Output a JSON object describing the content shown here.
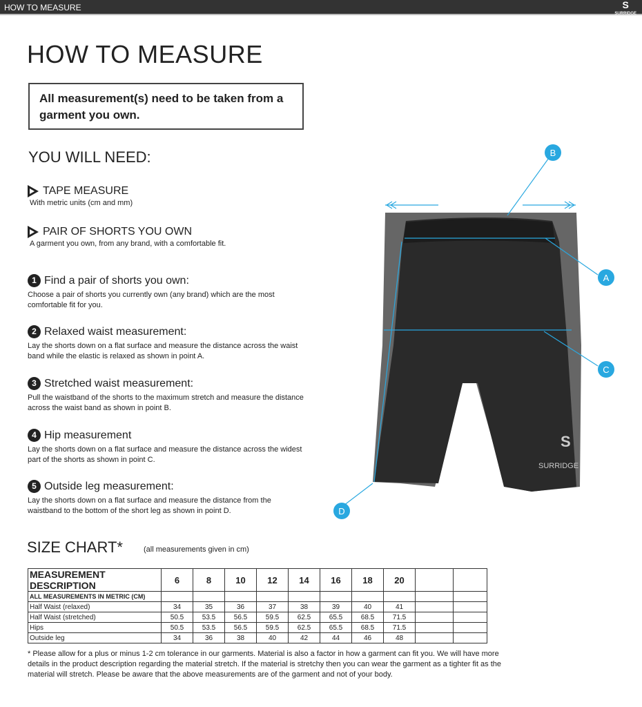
{
  "header": {
    "title": "HOW TO MEASURE",
    "logo_text": "SURRIDGE"
  },
  "page_title": "HOW TO MEASURE",
  "notice": "All measurement(s) need to be taken from a garment you own.",
  "you_will_need": {
    "heading": "YOU WILL NEED:",
    "items": [
      {
        "title": "TAPE MEASURE",
        "desc": "With metric units (cm and mm)"
      },
      {
        "title": "PAIR OF SHORTS YOU OWN",
        "desc": "A garment you own, from any brand, with a comfortable fit."
      }
    ]
  },
  "steps": [
    {
      "num": "1",
      "title": "Find a pair of shorts you own:",
      "desc": "Choose a pair of shorts you currently own (any brand) which are the most comfortable fit for you."
    },
    {
      "num": "2",
      "title": "Relaxed waist measurement:",
      "desc": "Lay the shorts down on a flat surface and measure the distance across the waist band while the elastic is relaxed as shown in point A."
    },
    {
      "num": "3",
      "title": "Stretched waist measurement:",
      "desc": "Pull the waistband of the shorts to the maximum stretch and measure the distance across the waist band as shown in point B."
    },
    {
      "num": "4",
      "title": "Hip measurement",
      "desc": "Lay the shorts down on a flat surface and measure the distance across the widest part of the shorts as shown in point C."
    },
    {
      "num": "5",
      "title": "Outside leg measurement:",
      "desc": "Lay the shorts down on a flat surface and measure the distance from the waistband to the bottom of the short leg as shown in point D."
    }
  ],
  "diagram": {
    "labels": [
      "A",
      "B",
      "C",
      "D"
    ],
    "accent": "#29a8e0",
    "garment_logo": "SURRIDGE"
  },
  "size_chart": {
    "heading": "SIZE CHART*",
    "note": "(all measurements given in cm)",
    "header": [
      "MEASUREMENT DESCRIPTION",
      "6",
      "8",
      "10",
      "12",
      "14",
      "16",
      "18",
      "20",
      "",
      ""
    ],
    "subheader": "ALL MEASUREMENTS IN METRIC (CM)",
    "rows": [
      [
        "Half Waist (relaxed)",
        "34",
        "35",
        "36",
        "37",
        "38",
        "39",
        "40",
        "41",
        "",
        ""
      ],
      [
        "Half Waist (stretched)",
        "50.5",
        "53.5",
        "56.5",
        "59.5",
        "62.5",
        "65.5",
        "68.5",
        "71.5",
        "",
        ""
      ],
      [
        "Hips",
        "50.5",
        "53.5",
        "56.5",
        "59.5",
        "62.5",
        "65.5",
        "68.5",
        "71.5",
        "",
        ""
      ],
      [
        "Outside leg",
        "34",
        "36",
        "38",
        "40",
        "42",
        "44",
        "46",
        "48",
        "",
        ""
      ]
    ]
  },
  "footnote": "* Please allow for a plus or minus 1-2 cm tolerance in our garments. Material is also a factor in how a garment can fit you. We will have more details in the product description regarding the material stretch.  If the material is stretchy then you can wear the garment as a tighter fit as the material will stretch.  Please be aware that the above measurements are of the garment and not of your body."
}
